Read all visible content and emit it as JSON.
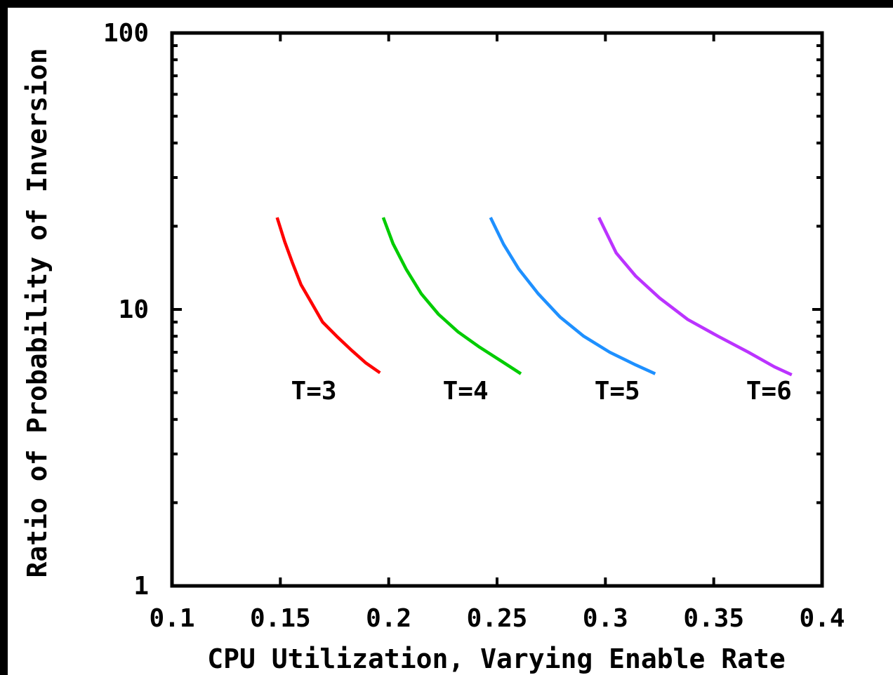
{
  "chart_data": {
    "type": "line",
    "xlabel": "CPU Utilization, Varying Enable Rate",
    "ylabel": "Ratio of Probability of Inversion",
    "xlim": [
      0.1,
      0.4
    ],
    "ylim": [
      1,
      100
    ],
    "yscale": "log",
    "xticks": [
      "0.1",
      "0.15",
      "0.2",
      "0.25",
      "0.3",
      "0.35",
      "0.4"
    ],
    "yticks": [
      "1",
      "10",
      "100"
    ],
    "grid": false,
    "legend": "none",
    "series": [
      {
        "name": "T=3",
        "color": "#ff0000",
        "x": [
          0.1485,
          0.152,
          0.1555,
          0.1595,
          0.164,
          0.1695,
          0.176,
          0.183,
          0.1895,
          0.196
        ],
        "y": [
          21.5,
          17.6,
          14.8,
          12.3,
          10.7,
          9.0,
          8.0,
          7.1,
          6.4,
          5.9
        ]
      },
      {
        "name": "T=4",
        "color": "#00cc00",
        "x": [
          0.1975,
          0.202,
          0.208,
          0.215,
          0.223,
          0.232,
          0.242,
          0.252,
          0.261
        ],
        "y": [
          21.5,
          17.3,
          14.0,
          11.4,
          9.6,
          8.3,
          7.3,
          6.5,
          5.85
        ]
      },
      {
        "name": "T=5",
        "color": "#1e90ff",
        "x": [
          0.247,
          0.253,
          0.26,
          0.269,
          0.279,
          0.29,
          0.302,
          0.314,
          0.323
        ],
        "y": [
          21.5,
          17.2,
          14.0,
          11.4,
          9.4,
          8.0,
          7.0,
          6.3,
          5.85
        ]
      },
      {
        "name": "T=6",
        "color": "#bb33ff",
        "x": [
          0.297,
          0.305,
          0.314,
          0.325,
          0.338,
          0.352,
          0.366,
          0.378,
          0.386
        ],
        "y": [
          21.5,
          16.0,
          13.2,
          11.0,
          9.2,
          8.0,
          7.0,
          6.2,
          5.8
        ]
      }
    ],
    "annotations": [
      {
        "text": "T=3",
        "x": 0.176,
        "y": 5.07
      },
      {
        "text": "T=4",
        "x": 0.246,
        "y": 5.07
      },
      {
        "text": "T=5",
        "x": 0.316,
        "y": 5.07
      },
      {
        "text": "T=6",
        "x": 0.386,
        "y": 5.07
      }
    ]
  }
}
